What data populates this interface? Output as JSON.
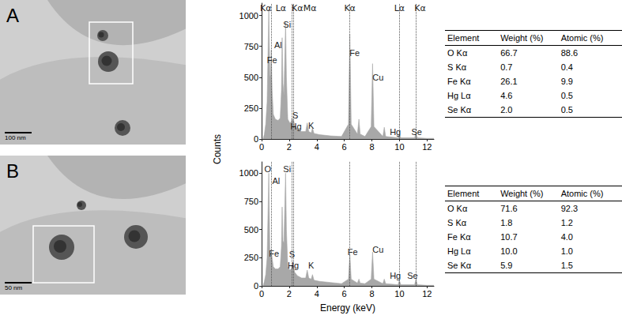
{
  "y_label": "Counts",
  "panels": [
    {
      "label": "A",
      "scale_bar": "100 nm",
      "table": {
        "header": [
          "Element",
          "Weight (%)",
          "Atomic (%)"
        ],
        "rows": [
          [
            "O Kα",
            "66.7",
            "88.6"
          ],
          [
            "S Kα",
            "0.7",
            "0.4"
          ],
          [
            "Fe Kα",
            "26.1",
            "9.9"
          ],
          [
            "Hg Lα",
            "4.6",
            "0.5"
          ],
          [
            "Se Kα",
            "2.0",
            "0.5"
          ]
        ]
      }
    },
    {
      "label": "B",
      "scale_bar": "50 nm",
      "table": {
        "header": [
          "Element",
          "Weight (%)",
          "Atomic (%)"
        ],
        "rows": [
          [
            "O Kα",
            "71.6",
            "92.3"
          ],
          [
            "S Kα",
            "1.8",
            "1.2"
          ],
          [
            "Fe Kα",
            "10.7",
            "4.0"
          ],
          [
            "Hg Lα",
            "10.0",
            "1.0"
          ],
          [
            "Se Kα",
            "5.9",
            "1.5"
          ]
        ]
      }
    }
  ],
  "chart_data": [
    {
      "type": "area",
      "color": "#a8a8a8",
      "x": [
        0,
        0.1,
        0.2,
        0.3,
        0.4,
        0.45,
        0.52,
        0.6,
        0.65,
        0.7,
        0.76,
        0.85,
        1.0,
        1.2,
        1.35,
        1.44,
        1.49,
        1.55,
        1.62,
        1.69,
        1.74,
        1.8,
        1.9,
        2.05,
        2.15,
        2.2,
        2.25,
        2.31,
        2.4,
        2.6,
        2.9,
        3.2,
        3.31,
        3.42,
        3.6,
        3.69,
        3.8,
        4.2,
        5.0,
        5.8,
        6.3,
        6.4,
        6.5,
        6.95,
        7.06,
        7.15,
        7.5,
        7.95,
        8.05,
        8.15,
        8.8,
        8.9,
        9.0,
        9.9,
        9.99,
        10.1,
        11.1,
        11.2,
        11.3,
        12.0,
        12.5
      ],
      "values": [
        0,
        0,
        40,
        120,
        300,
        600,
        1050,
        500,
        520,
        720,
        400,
        200,
        160,
        150,
        170,
        400,
        820,
        450,
        350,
        700,
        950,
        500,
        160,
        130,
        140,
        170,
        150,
        160,
        110,
        80,
        60,
        60,
        130,
        60,
        50,
        90,
        45,
        35,
        25,
        20,
        120,
        850,
        120,
        40,
        160,
        40,
        20,
        100,
        610,
        100,
        20,
        95,
        20,
        10,
        40,
        10,
        10,
        45,
        10,
        5,
        5
      ],
      "xlim": [
        0,
        12.5
      ],
      "xticks": [
        0,
        2,
        4,
        6,
        8,
        10,
        12
      ],
      "ylim": [
        0,
        1100
      ],
      "yticks": [
        0,
        250,
        500,
        750,
        1000
      ],
      "peak_lines": [
        0.7,
        2.2,
        2.31,
        6.4,
        9.99,
        11.2
      ],
      "top_labels": [
        {
          "text": "Kα",
          "x": 0.3
        },
        {
          "text": "Lα",
          "x": 1.4
        },
        {
          "text": "Kα",
          "x": 2.6
        },
        {
          "text": "Mα",
          "x": 3.5
        },
        {
          "text": "Kα",
          "x": 6.4
        },
        {
          "text": "Lα",
          "x": 10.0
        },
        {
          "text": "Kα",
          "x": 11.5
        }
      ],
      "peak_labels": [
        {
          "text": "Fe",
          "x": 0.75,
          "y": 640
        },
        {
          "text": "Al",
          "x": 1.2,
          "y": 760
        },
        {
          "text": "Si",
          "x": 1.85,
          "y": 930
        },
        {
          "text": "S",
          "x": 2.45,
          "y": 190
        },
        {
          "text": "Hg",
          "x": 2.5,
          "y": 100
        },
        {
          "text": "K",
          "x": 3.6,
          "y": 110
        },
        {
          "text": "Fe",
          "x": 6.75,
          "y": 700
        },
        {
          "text": "Cu",
          "x": 8.45,
          "y": 500
        },
        {
          "text": "Hg",
          "x": 9.7,
          "y": 60
        },
        {
          "text": "Se",
          "x": 11.25,
          "y": 60
        }
      ]
    },
    {
      "type": "area",
      "color": "#a8a8a8",
      "x_label": "Energy (keV)",
      "x": [
        0,
        0.1,
        0.2,
        0.3,
        0.4,
        0.45,
        0.52,
        0.6,
        0.65,
        0.7,
        0.76,
        0.85,
        1.0,
        1.2,
        1.35,
        1.44,
        1.49,
        1.55,
        1.62,
        1.69,
        1.74,
        1.8,
        1.9,
        2.05,
        2.15,
        2.2,
        2.25,
        2.31,
        2.4,
        2.6,
        2.9,
        3.2,
        3.31,
        3.42,
        3.6,
        3.69,
        3.8,
        4.2,
        5.0,
        5.8,
        6.3,
        6.4,
        6.5,
        6.95,
        7.06,
        7.15,
        7.5,
        7.95,
        8.05,
        8.15,
        8.8,
        8.9,
        9.0,
        9.9,
        9.99,
        10.1,
        11.1,
        11.2,
        11.3,
        12.0,
        12.5
      ],
      "values": [
        0,
        0,
        40,
        100,
        250,
        550,
        1000,
        300,
        250,
        330,
        250,
        170,
        150,
        150,
        170,
        350,
        700,
        400,
        380,
        750,
        1000,
        500,
        170,
        140,
        150,
        180,
        160,
        180,
        120,
        90,
        70,
        70,
        140,
        70,
        60,
        100,
        50,
        40,
        30,
        20,
        60,
        280,
        60,
        25,
        60,
        25,
        20,
        60,
        300,
        60,
        20,
        60,
        20,
        10,
        50,
        10,
        10,
        60,
        10,
        5,
        5
      ],
      "xlim": [
        0,
        12.5
      ],
      "xticks": [
        0,
        2,
        4,
        6,
        8,
        10,
        12
      ],
      "ylim": [
        0,
        1100
      ],
      "yticks": [
        0,
        250,
        500,
        750,
        1000
      ],
      "peak_lines": [
        0.7,
        2.2,
        2.31,
        6.4,
        9.99,
        11.2
      ],
      "peak_labels": [
        {
          "text": "O",
          "x": 0.45,
          "y": 1040
        },
        {
          "text": "Al",
          "x": 1.05,
          "y": 930
        },
        {
          "text": "Si",
          "x": 1.85,
          "y": 1040
        },
        {
          "text": "Fe",
          "x": 0.9,
          "y": 290
        },
        {
          "text": "S",
          "x": 2.2,
          "y": 280
        },
        {
          "text": "Hg",
          "x": 2.3,
          "y": 180
        },
        {
          "text": "K",
          "x": 3.6,
          "y": 180
        },
        {
          "text": "Fe",
          "x": 6.6,
          "y": 300
        },
        {
          "text": "Cu",
          "x": 8.45,
          "y": 320
        },
        {
          "text": "Hg",
          "x": 9.7,
          "y": 90
        },
        {
          "text": "Se",
          "x": 10.95,
          "y": 90
        }
      ]
    }
  ]
}
